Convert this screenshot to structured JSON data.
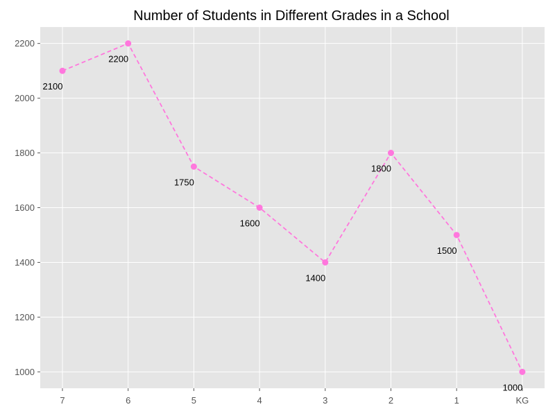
{
  "chart_data": {
    "type": "line",
    "title": "Number of Students in Different Grades in a School",
    "xlabel": "",
    "ylabel": "",
    "categories": [
      "7",
      "6",
      "5",
      "4",
      "3",
      "2",
      "1",
      "KG"
    ],
    "series": [
      {
        "values": [
          2100,
          2200,
          1750,
          1600,
          1400,
          1800,
          1500,
          1000
        ],
        "color": "#ff77dd",
        "line_style": "dashed",
        "marker": "circle"
      }
    ],
    "data_labels": [
      "2100",
      "2200",
      "1750",
      "1600",
      "1400",
      "1800",
      "1500",
      "1000"
    ],
    "yticks": [
      1000,
      1200,
      1400,
      1600,
      1800,
      2000,
      2200
    ],
    "ylim": [
      940,
      2260
    ],
    "grid": true,
    "legend": "none",
    "colors": {
      "plot_background": "#e5e5e5",
      "grid": "#ffffff",
      "tick_label": "#555555",
      "line": "#ff77dd"
    }
  }
}
